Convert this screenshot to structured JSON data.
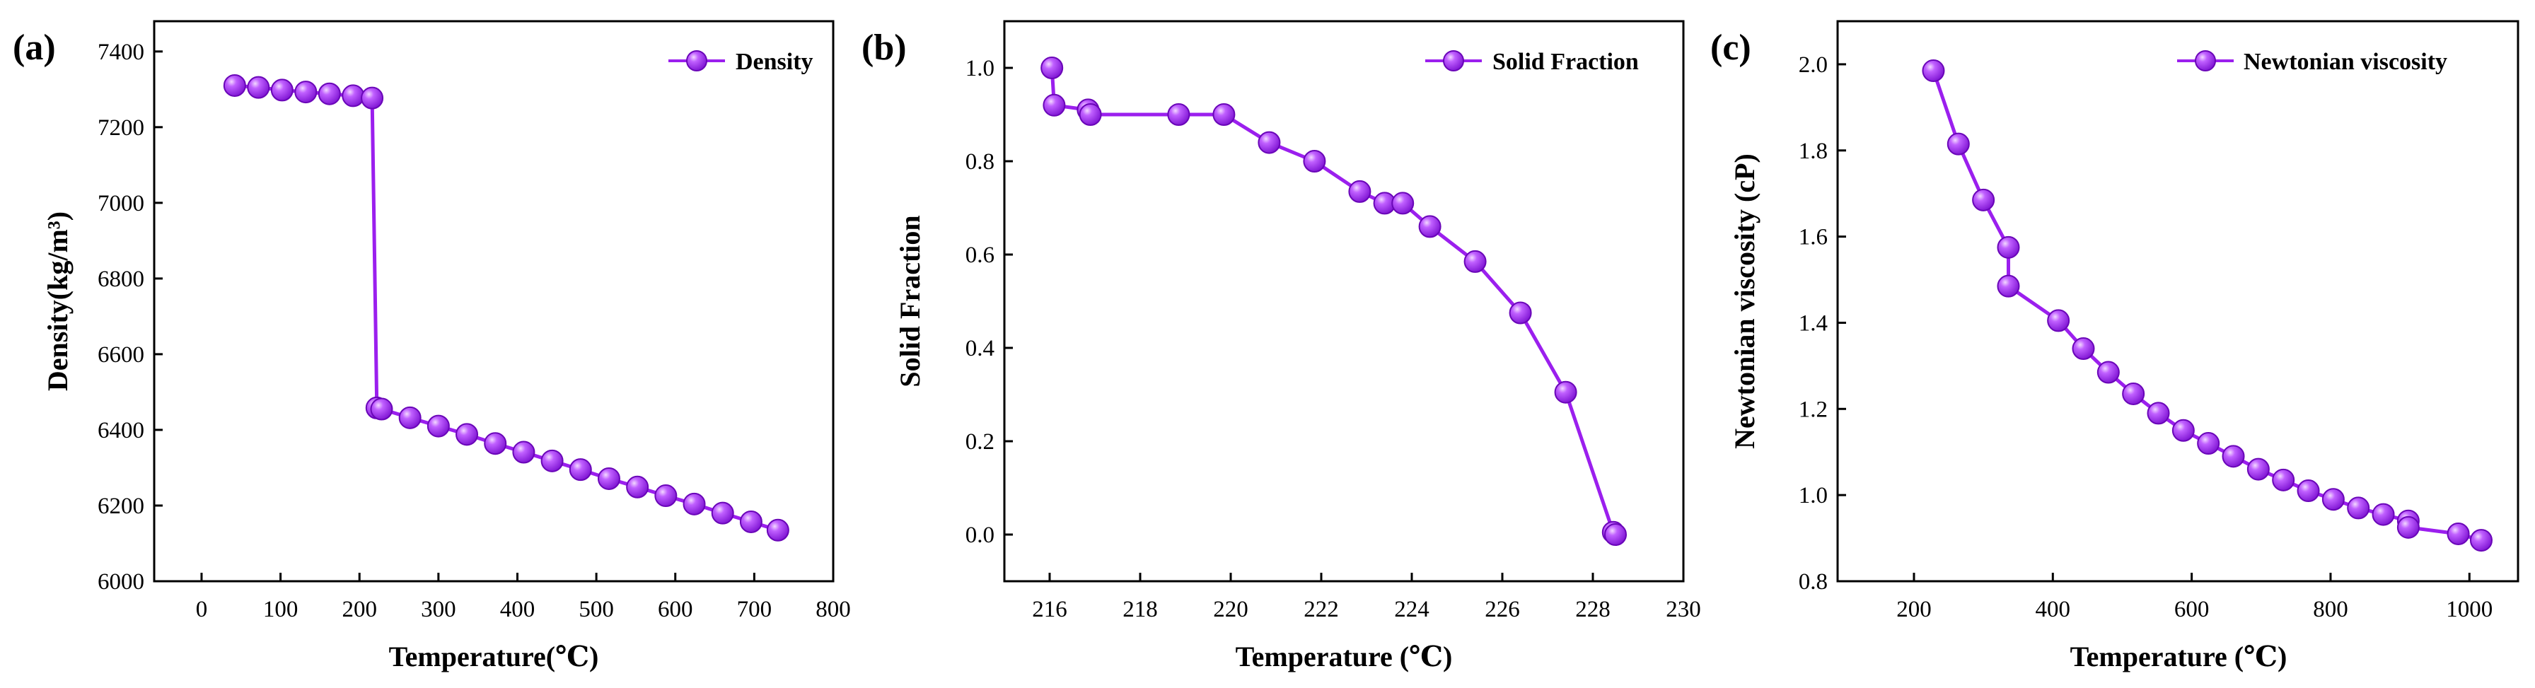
{
  "colors": {
    "series": "#9B1FEE",
    "marker_stroke": "#6A06B8",
    "marker_highlight": "#E7B8FF",
    "axis": "#000000"
  },
  "chart_data": [
    {
      "type": "line",
      "panel_label": "(a)",
      "title": "",
      "xlabel": "Temperature(℃)",
      "ylabel": "Density(kg/m³)",
      "xlim": [
        -60,
        800
      ],
      "ylim": [
        6000,
        7480
      ],
      "xticks": [
        0,
        100,
        200,
        300,
        400,
        500,
        600,
        700,
        800
      ],
      "yticks": [
        6000,
        6200,
        6400,
        6600,
        6800,
        7000,
        7200,
        7400
      ],
      "xtick_labels": [
        "0",
        "100",
        "200",
        "300",
        "400",
        "500",
        "600",
        "700",
        "800"
      ],
      "ytick_labels": [
        "6000",
        "6200",
        "6400",
        "6600",
        "6800",
        "7000",
        "7200",
        "7400"
      ],
      "legend": "top-right",
      "grid": false,
      "series": [
        {
          "name": "Density",
          "x": [
            42,
            72,
            102,
            132,
            162,
            192,
            216,
            222,
            228,
            264,
            300,
            336,
            372,
            408,
            444,
            480,
            516,
            552,
            588,
            624,
            660,
            696,
            730
          ],
          "y": [
            7310,
            7305,
            7298,
            7293,
            7288,
            7283,
            7277,
            6458,
            6455,
            6432,
            6410,
            6388,
            6364,
            6341,
            6318,
            6295,
            6271,
            6249,
            6226,
            6204,
            6180,
            6157,
            6135
          ]
        }
      ]
    },
    {
      "type": "line",
      "panel_label": "(b)",
      "title": "",
      "xlabel": "Temperature (℃)",
      "ylabel": "Solid Fraction",
      "xlim": [
        215,
        230
      ],
      "ylim": [
        -0.1,
        1.1
      ],
      "xticks": [
        216,
        218,
        220,
        222,
        224,
        226,
        228,
        230
      ],
      "yticks": [
        0.0,
        0.2,
        0.4,
        0.6,
        0.8,
        1.0
      ],
      "xtick_labels": [
        "216",
        "218",
        "220",
        "222",
        "224",
        "226",
        "228",
        "230"
      ],
      "ytick_labels": [
        "0.0",
        "0.2",
        "0.4",
        "0.6",
        "0.8",
        "1.0"
      ],
      "legend": "top-right",
      "grid": false,
      "series": [
        {
          "name": "Solid Fraction",
          "x": [
            216.05,
            216.1,
            216.85,
            216.9,
            218.85,
            219.85,
            220.85,
            221.85,
            222.85,
            223.4,
            223.8,
            224.4,
            225.4,
            226.4,
            227.4,
            228.45,
            228.5
          ],
          "y": [
            1.0,
            0.92,
            0.91,
            0.9,
            0.9,
            0.9,
            0.84,
            0.8,
            0.735,
            0.71,
            0.71,
            0.66,
            0.585,
            0.475,
            0.305,
            0.005,
            0.0
          ]
        }
      ]
    },
    {
      "type": "line",
      "panel_label": "(c)",
      "title": "",
      "xlabel": "Temperature (℃)",
      "ylabel": "Newtonian viscosity (cP)",
      "xlim": [
        90,
        1070
      ],
      "ylim": [
        0.8,
        2.1
      ],
      "xticks": [
        200,
        400,
        600,
        800,
        1000
      ],
      "yticks": [
        0.8,
        1.0,
        1.2,
        1.4,
        1.6,
        1.8,
        2.0
      ],
      "xtick_labels": [
        "200",
        "400",
        "600",
        "800",
        "1000"
      ],
      "ytick_labels": [
        "0.8",
        "1.0",
        "1.2",
        "1.4",
        "1.6",
        "1.8",
        "2.0"
      ],
      "legend": "top-right",
      "grid": false,
      "series": [
        {
          "name": "Newtonian viscosity",
          "x": [
            228,
            264,
            300,
            336,
            336,
            408,
            444,
            480,
            516,
            552,
            588,
            624,
            660,
            696,
            732,
            768,
            804,
            840,
            876,
            912,
            912,
            984,
            1017
          ],
          "y": [
            1.985,
            1.815,
            1.685,
            1.575,
            1.485,
            1.405,
            1.34,
            1.285,
            1.235,
            1.19,
            1.15,
            1.12,
            1.09,
            1.06,
            1.035,
            1.01,
            0.99,
            0.97,
            0.955,
            0.94,
            0.925,
            0.91,
            0.895
          ]
        }
      ]
    }
  ]
}
